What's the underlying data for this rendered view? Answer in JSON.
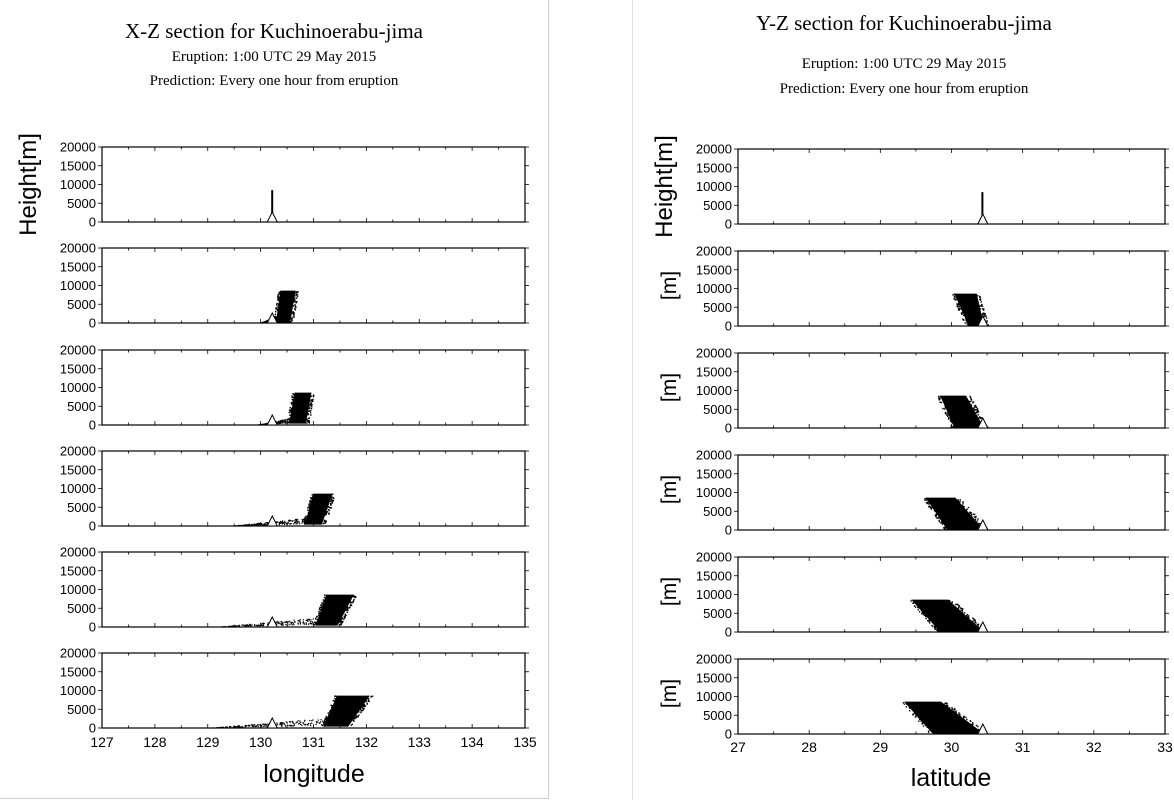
{
  "figures": [
    {
      "title": "X-Z section for Kuchinoerabu-jima",
      "eruption": "Eruption: 1:00 UTC 29 May 2015",
      "prediction": "Prediction: Every one hour from eruption"
    },
    {
      "title": "Y-Z section for Kuchinoerabu-jima",
      "eruption": "Eruption: 1:00 UTC 29 May 2015",
      "prediction": "Prediction: Every one hour from eruption"
    }
  ],
  "chart_data": [
    {
      "type": "scatter",
      "title": "X-Z section for Kuchinoerabu-jima",
      "subtitle": [
        "Eruption: 1:00 UTC 29 May 2015",
        "Prediction: Every one hour from eruption"
      ],
      "xlabel": "longitude",
      "ylabels": [
        "Height[m]",
        "",
        "",
        "",
        "",
        ""
      ],
      "xlim": [
        127,
        135
      ],
      "ylim": [
        0,
        20000
      ],
      "xticks": [
        "127",
        "128",
        "129",
        "130",
        "131",
        "132",
        "133",
        "134",
        "135"
      ],
      "yticks": [
        "0",
        "5000",
        "10000",
        "15000",
        "20000"
      ],
      "volcano_x": 130.22,
      "grid": false,
      "legend": "none",
      "panels": [
        {
          "hour": 1,
          "column": {
            "x": [
              130.2,
              130.22
            ],
            "z": [
              500,
              8500
            ]
          },
          "low_tail": null,
          "plume": null
        },
        {
          "hour": 2,
          "column": null,
          "low_tail": {
            "x": [
              130.0,
              130.35
            ],
            "z": [
              0,
              2000
            ]
          },
          "plume": {
            "x_bottom": [
              130.3,
              130.55
            ],
            "x_top": [
              130.38,
              130.65
            ],
            "z": [
              0,
              8500
            ]
          }
        },
        {
          "hour": 3,
          "column": null,
          "low_tail": {
            "x": [
              129.95,
              130.7
            ],
            "z": [
              0,
              2200
            ]
          },
          "plume": {
            "x_bottom": [
              130.55,
              130.85
            ],
            "x_top": [
              130.65,
              130.95
            ],
            "z": [
              500,
              8500
            ]
          }
        },
        {
          "hour": 4,
          "column": null,
          "low_tail": {
            "x": [
              129.5,
              131.1
            ],
            "z": [
              0,
              2500
            ]
          },
          "plume": {
            "x_bottom": [
              130.85,
              131.15
            ],
            "x_top": [
              131.0,
              131.35
            ],
            "z": [
              500,
              8500
            ]
          }
        },
        {
          "hour": 5,
          "column": null,
          "low_tail": {
            "x": [
              129.25,
              131.3
            ],
            "z": [
              0,
              2700
            ]
          },
          "plume": {
            "x_bottom": [
              131.05,
              131.45
            ],
            "x_top": [
              131.25,
              131.75
            ],
            "z": [
              500,
              8500
            ]
          }
        },
        {
          "hour": 6,
          "column": null,
          "low_tail": {
            "x": [
              129.1,
              131.6
            ],
            "z": [
              0,
              3000
            ]
          },
          "plume": {
            "x_bottom": [
              131.2,
              131.65
            ],
            "x_top": [
              131.45,
              132.05
            ],
            "z": [
              500,
              8500
            ]
          }
        }
      ]
    },
    {
      "type": "scatter",
      "title": "Y-Z section for Kuchinoerabu-jima",
      "subtitle": [
        "Eruption: 1:00 UTC 29 May 2015",
        "Prediction: Every one hour from eruption"
      ],
      "xlabel": "latitude",
      "ylabels": [
        "Height[m]",
        "[m]",
        "[m]",
        "[m]",
        "[m]",
        "[m]"
      ],
      "xlim": [
        27,
        33
      ],
      "ylim": [
        0,
        20000
      ],
      "xticks": [
        "27",
        "28",
        "29",
        "30",
        "31",
        "32",
        "33"
      ],
      "yticks": [
        "0",
        "5000",
        "10000",
        "15000",
        "20000"
      ],
      "volcano_x": 30.44,
      "grid": false,
      "legend": "none",
      "panels": [
        {
          "hour": 1,
          "column": {
            "x": [
              30.42,
              30.44
            ],
            "z": [
              500,
              8500
            ]
          },
          "low_tail": null,
          "plume": null
        },
        {
          "hour": 2,
          "column": null,
          "low_tail": null,
          "plume": {
            "x_bottom": [
              30.25,
              30.45
            ],
            "x_top": [
              30.05,
              30.35
            ],
            "z": [
              0,
              8500
            ]
          }
        },
        {
          "hour": 3,
          "column": null,
          "low_tail": null,
          "plume": {
            "x_bottom": [
              30.05,
              30.45
            ],
            "x_top": [
              29.85,
              30.2
            ],
            "z": [
              0,
              8500
            ]
          }
        },
        {
          "hour": 4,
          "column": null,
          "low_tail": null,
          "plume": {
            "x_bottom": [
              29.95,
              30.45
            ],
            "x_top": [
              29.65,
              30.05
            ],
            "z": [
              0,
              8500
            ]
          }
        },
        {
          "hour": 5,
          "column": null,
          "low_tail": null,
          "plume": {
            "x_bottom": [
              29.85,
              30.45
            ],
            "x_top": [
              29.45,
              29.95
            ],
            "z": [
              0,
              8500
            ]
          }
        },
        {
          "hour": 6,
          "column": null,
          "low_tail": null,
          "plume": {
            "x_bottom": [
              29.75,
              30.45
            ],
            "x_top": [
              29.35,
              29.85
            ],
            "z": [
              0,
              8500
            ]
          }
        }
      ]
    }
  ]
}
